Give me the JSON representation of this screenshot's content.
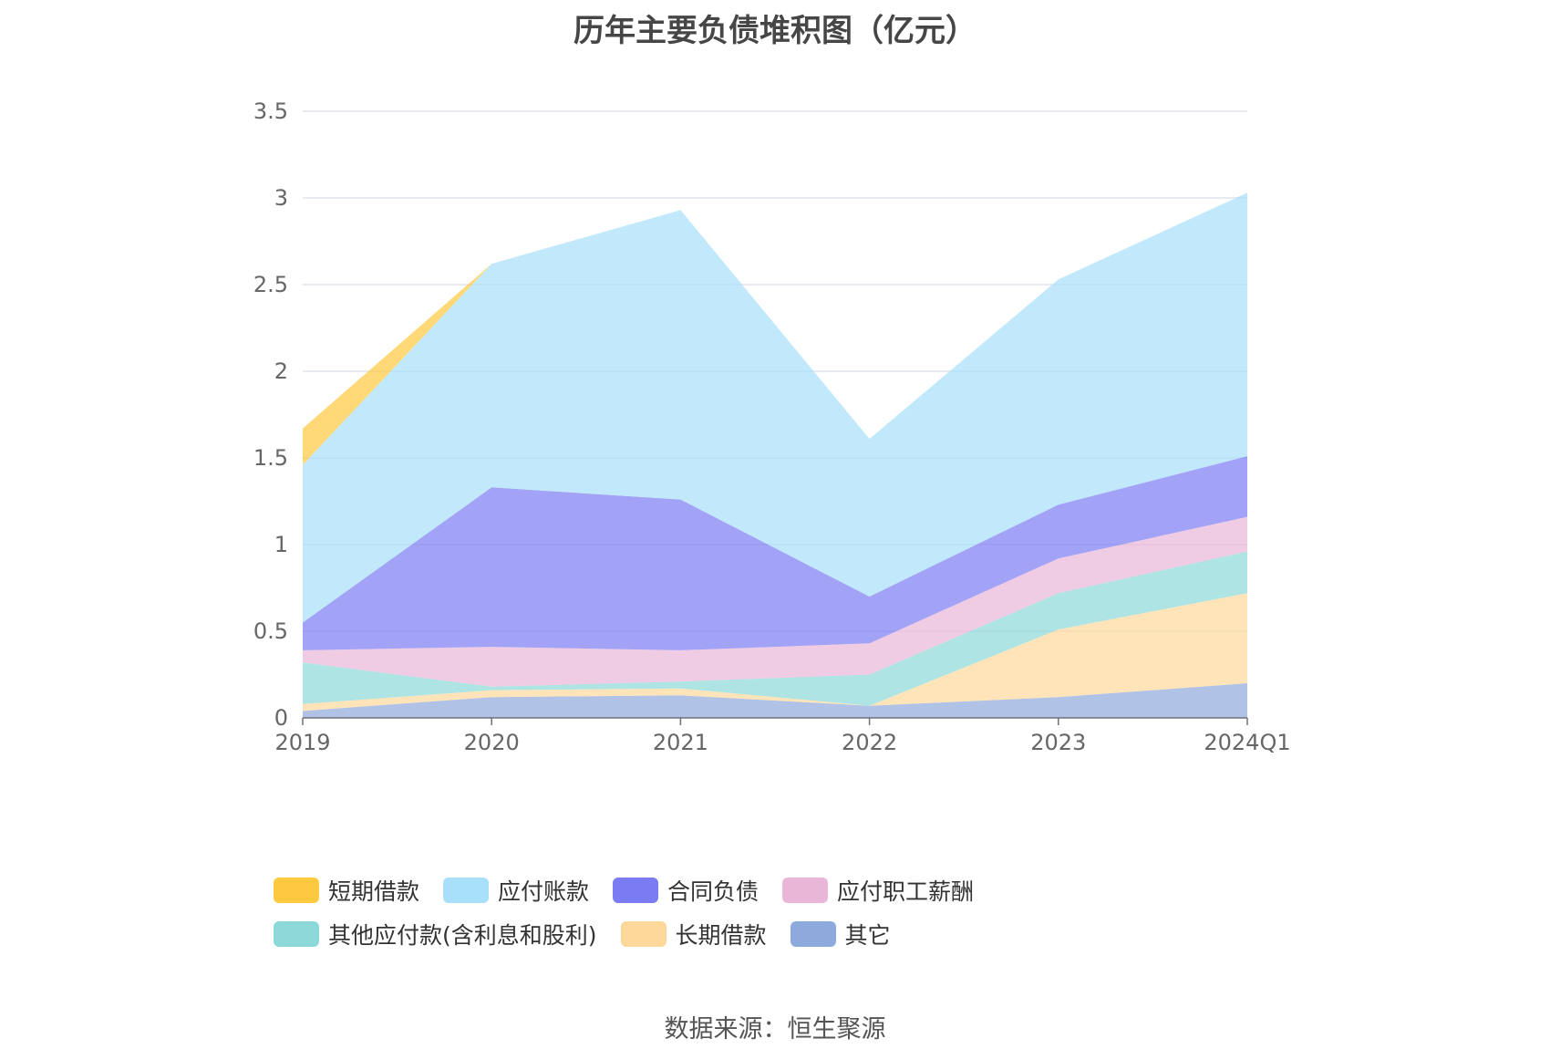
{
  "chart_data": {
    "type": "area",
    "stacked": true,
    "title": "历年主要负债堆积图（亿元）",
    "categories": [
      "2019",
      "2020",
      "2021",
      "2022",
      "2023",
      "2024Q1"
    ],
    "ylim": [
      0,
      3.5
    ],
    "yticks": [
      "0",
      "0.5",
      "1",
      "1.5",
      "2",
      "2.5",
      "3",
      "3.5"
    ],
    "grid": true,
    "legend_position": "bottom",
    "series": [
      {
        "name": "其它",
        "color": "#8eaadc",
        "values": [
          0.04,
          0.12,
          0.13,
          0.07,
          0.12,
          0.2
        ]
      },
      {
        "name": "长期借款",
        "color": "#fdd89a",
        "values": [
          0.04,
          0.04,
          0.04,
          0.0,
          0.39,
          0.52
        ]
      },
      {
        "name": "其他应付款(含利息和股利)",
        "color": "#8dd9d9",
        "values": [
          0.24,
          0.02,
          0.04,
          0.18,
          0.21,
          0.24
        ]
      },
      {
        "name": "应付职工薪酬",
        "color": "#eab6d8",
        "values": [
          0.07,
          0.23,
          0.18,
          0.18,
          0.2,
          0.2
        ]
      },
      {
        "name": "合同负债",
        "color": "#7b7cf4",
        "values": [
          0.16,
          0.92,
          0.87,
          0.27,
          0.31,
          0.35
        ]
      },
      {
        "name": "应付账款",
        "color": "#a8e0fa",
        "values": [
          0.91,
          1.29,
          1.67,
          0.91,
          1.3,
          1.52
        ]
      },
      {
        "name": "短期借款",
        "color": "#ffc93f",
        "values": [
          0.21,
          0.0,
          0.0,
          0.0,
          0.0,
          0.0
        ]
      }
    ]
  },
  "legend_order": [
    "短期借款",
    "应付账款",
    "合同负债",
    "应付职工薪酬",
    "其他应付款(含利息和股利)",
    "长期借款",
    "其它"
  ],
  "source_text": "数据来源：恒生聚源"
}
